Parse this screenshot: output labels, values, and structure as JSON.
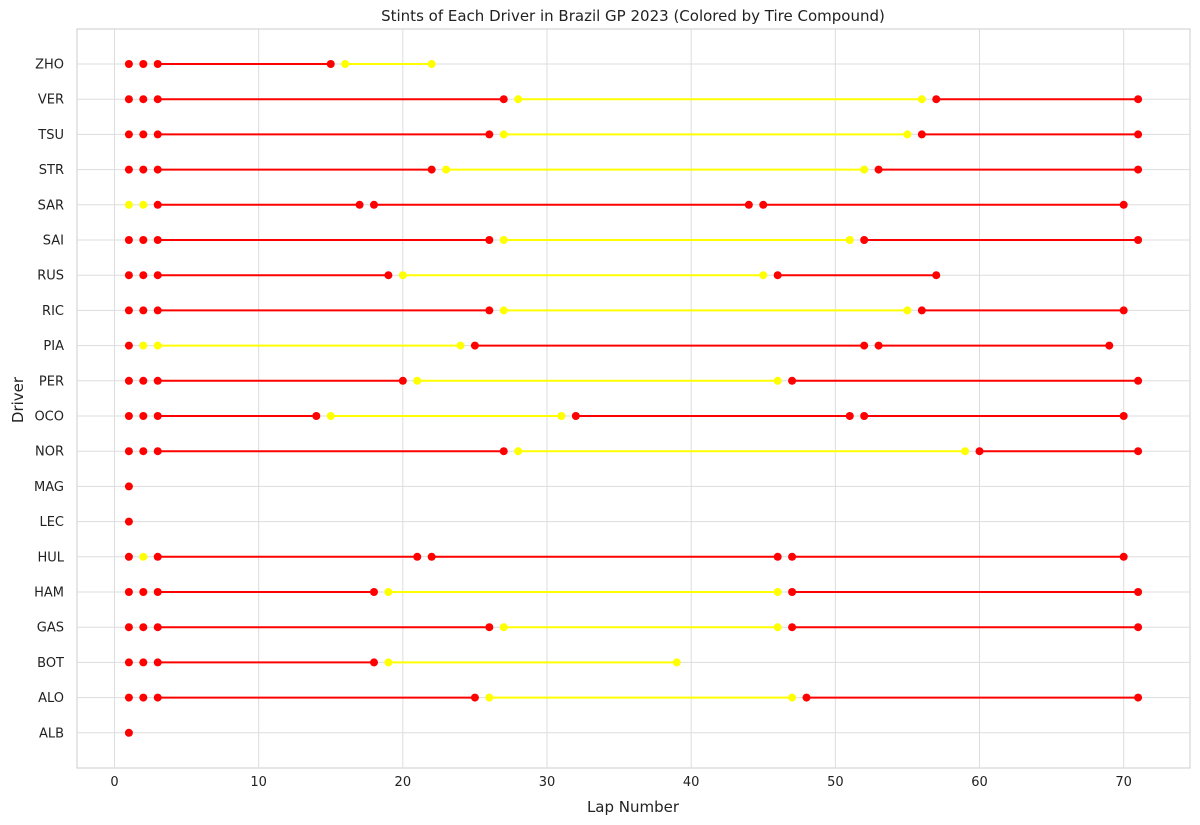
{
  "chart_data": {
    "type": "line",
    "title": "Stints of Each Driver in Brazil GP 2023 (Colored by Tire Compound)",
    "xlabel": "Lap Number",
    "ylabel": "Driver",
    "xlim": [
      -2.6,
      74.6
    ],
    "xticks": [
      0,
      10,
      20,
      30,
      40,
      50,
      60,
      70
    ],
    "grid": true,
    "legend": "none",
    "colors": {
      "SOFT": "#ff0000",
      "MEDIUM": "#ffff00"
    },
    "drivers": [
      "ZHO",
      "VER",
      "TSU",
      "STR",
      "SAR",
      "SAI",
      "RUS",
      "RIC",
      "PIA",
      "PER",
      "OCO",
      "NOR",
      "MAG",
      "LEC",
      "HUL",
      "HAM",
      "GAS",
      "BOT",
      "ALO",
      "ALB"
    ],
    "stints": {
      "ZHO": [
        [
          1,
          1,
          "SOFT"
        ],
        [
          2,
          2,
          "SOFT"
        ],
        [
          3,
          15,
          "SOFT"
        ],
        [
          16,
          22,
          "MEDIUM"
        ]
      ],
      "VER": [
        [
          1,
          1,
          "SOFT"
        ],
        [
          2,
          2,
          "SOFT"
        ],
        [
          3,
          27,
          "SOFT"
        ],
        [
          28,
          56,
          "MEDIUM"
        ],
        [
          57,
          71,
          "SOFT"
        ]
      ],
      "TSU": [
        [
          1,
          1,
          "SOFT"
        ],
        [
          2,
          2,
          "SOFT"
        ],
        [
          3,
          26,
          "SOFT"
        ],
        [
          27,
          55,
          "MEDIUM"
        ],
        [
          56,
          71,
          "SOFT"
        ]
      ],
      "STR": [
        [
          1,
          1,
          "SOFT"
        ],
        [
          2,
          2,
          "SOFT"
        ],
        [
          3,
          22,
          "SOFT"
        ],
        [
          23,
          52,
          "MEDIUM"
        ],
        [
          53,
          71,
          "SOFT"
        ]
      ],
      "SAR": [
        [
          1,
          1,
          "MEDIUM"
        ],
        [
          2,
          2,
          "MEDIUM"
        ],
        [
          3,
          17,
          "SOFT"
        ],
        [
          18,
          44,
          "SOFT"
        ],
        [
          45,
          70,
          "SOFT"
        ]
      ],
      "SAI": [
        [
          1,
          1,
          "SOFT"
        ],
        [
          2,
          2,
          "SOFT"
        ],
        [
          3,
          26,
          "SOFT"
        ],
        [
          27,
          51,
          "MEDIUM"
        ],
        [
          52,
          71,
          "SOFT"
        ]
      ],
      "RUS": [
        [
          1,
          1,
          "SOFT"
        ],
        [
          2,
          2,
          "SOFT"
        ],
        [
          3,
          19,
          "SOFT"
        ],
        [
          20,
          45,
          "MEDIUM"
        ],
        [
          46,
          57,
          "SOFT"
        ]
      ],
      "RIC": [
        [
          1,
          1,
          "SOFT"
        ],
        [
          2,
          2,
          "SOFT"
        ],
        [
          3,
          26,
          "SOFT"
        ],
        [
          27,
          55,
          "MEDIUM"
        ],
        [
          56,
          70,
          "SOFT"
        ]
      ],
      "PIA": [
        [
          1,
          1,
          "SOFT"
        ],
        [
          2,
          2,
          "MEDIUM"
        ],
        [
          3,
          24,
          "MEDIUM"
        ],
        [
          25,
          52,
          "SOFT"
        ],
        [
          53,
          69,
          "SOFT"
        ]
      ],
      "PER": [
        [
          1,
          1,
          "SOFT"
        ],
        [
          2,
          2,
          "SOFT"
        ],
        [
          3,
          20,
          "SOFT"
        ],
        [
          21,
          46,
          "MEDIUM"
        ],
        [
          47,
          71,
          "SOFT"
        ]
      ],
      "OCO": [
        [
          1,
          1,
          "SOFT"
        ],
        [
          2,
          2,
          "SOFT"
        ],
        [
          3,
          14,
          "SOFT"
        ],
        [
          15,
          31,
          "MEDIUM"
        ],
        [
          32,
          51,
          "SOFT"
        ],
        [
          52,
          70,
          "SOFT"
        ]
      ],
      "NOR": [
        [
          1,
          1,
          "SOFT"
        ],
        [
          2,
          2,
          "SOFT"
        ],
        [
          3,
          27,
          "SOFT"
        ],
        [
          28,
          59,
          "MEDIUM"
        ],
        [
          60,
          71,
          "SOFT"
        ]
      ],
      "MAG": [
        [
          1,
          1,
          "SOFT"
        ]
      ],
      "LEC": [
        [
          1,
          1,
          "SOFT"
        ]
      ],
      "HUL": [
        [
          1,
          1,
          "SOFT"
        ],
        [
          2,
          2,
          "MEDIUM"
        ],
        [
          3,
          21,
          "SOFT"
        ],
        [
          22,
          46,
          "SOFT"
        ],
        [
          47,
          70,
          "SOFT"
        ]
      ],
      "HAM": [
        [
          1,
          1,
          "SOFT"
        ],
        [
          2,
          2,
          "SOFT"
        ],
        [
          3,
          18,
          "SOFT"
        ],
        [
          19,
          46,
          "MEDIUM"
        ],
        [
          47,
          71,
          "SOFT"
        ]
      ],
      "GAS": [
        [
          1,
          1,
          "SOFT"
        ],
        [
          2,
          2,
          "SOFT"
        ],
        [
          3,
          26,
          "SOFT"
        ],
        [
          27,
          46,
          "MEDIUM"
        ],
        [
          47,
          71,
          "SOFT"
        ]
      ],
      "BOT": [
        [
          1,
          1,
          "SOFT"
        ],
        [
          2,
          2,
          "SOFT"
        ],
        [
          3,
          18,
          "SOFT"
        ],
        [
          19,
          39,
          "MEDIUM"
        ]
      ],
      "ALO": [
        [
          1,
          1,
          "SOFT"
        ],
        [
          2,
          2,
          "SOFT"
        ],
        [
          3,
          25,
          "SOFT"
        ],
        [
          26,
          47,
          "MEDIUM"
        ],
        [
          48,
          71,
          "SOFT"
        ]
      ],
      "ALB": [
        [
          1,
          1,
          "SOFT"
        ]
      ]
    }
  }
}
